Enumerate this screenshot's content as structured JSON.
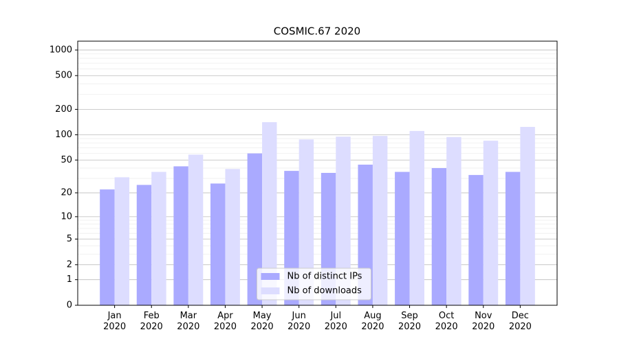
{
  "chart_data": {
    "type": "bar",
    "title": "COSMIC.67 2020",
    "categories": [
      "Jan\n2020",
      "Feb\n2020",
      "Mar\n2020",
      "Apr\n2020",
      "May\n2020",
      "Jun\n2020",
      "Jul\n2020",
      "Aug\n2020",
      "Sep\n2020",
      "Oct\n2020",
      "Nov\n2020",
      "Dec\n2020"
    ],
    "series": [
      {
        "name": "Nb of distinct IPs",
        "color": "#aaaaff",
        "values": [
          22,
          25,
          42,
          26,
          60,
          37,
          35,
          44,
          36,
          40,
          33,
          36
        ]
      },
      {
        "name": "Nb of downloads",
        "color": "#ddddff",
        "values": [
          31,
          36,
          58,
          39,
          141,
          88,
          95,
          97,
          111,
          94,
          85,
          124
        ]
      }
    ],
    "yscale": "log1p",
    "ylim": [
      0,
      1272
    ],
    "yticks": [
      0,
      1,
      2,
      5,
      10,
      20,
      50,
      100,
      200,
      500,
      1000
    ],
    "minor_yticks": [
      3,
      4,
      6,
      7,
      8,
      9,
      30,
      40,
      60,
      70,
      80,
      90,
      300,
      400,
      600,
      700,
      800,
      900
    ],
    "grid": true,
    "legend": "lower center"
  }
}
